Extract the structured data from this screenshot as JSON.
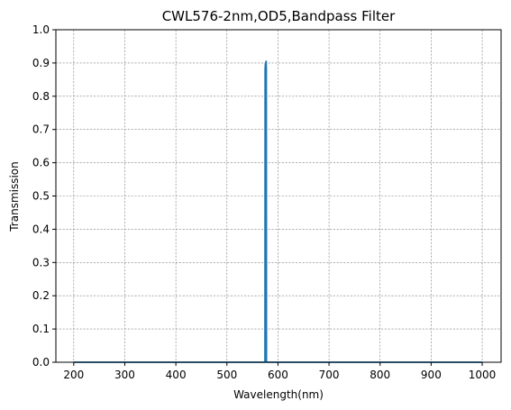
{
  "chart_data": {
    "type": "line",
    "title": "CWL576-2nm,OD5,Bandpass Filter",
    "xlabel": "Wavelength(nm)",
    "ylabel": "Transmission",
    "xlim": [
      165,
      1037
    ],
    "ylim": [
      0,
      1.0
    ],
    "xticks": [
      200,
      300,
      400,
      500,
      600,
      700,
      800,
      900,
      1000
    ],
    "yticks": [
      0.0,
      0.1,
      0.2,
      0.3,
      0.4,
      0.5,
      0.6,
      0.7,
      0.8,
      0.9,
      1.0
    ],
    "grid": true,
    "grid_style": "dashed",
    "series": [
      {
        "color": "#1f77b4",
        "x": [
          200,
          574.0,
          574.6,
          574.9,
          575.2,
          575.6,
          576.0,
          576.4,
          576.8,
          577.1,
          577.4,
          578.0,
          1000
        ],
        "y": [
          0.0,
          0.0,
          0.0,
          0.88,
          0.89,
          0.9,
          0.885,
          0.9,
          0.905,
          0.88,
          0.0,
          0.0,
          0.0
        ]
      }
    ]
  }
}
